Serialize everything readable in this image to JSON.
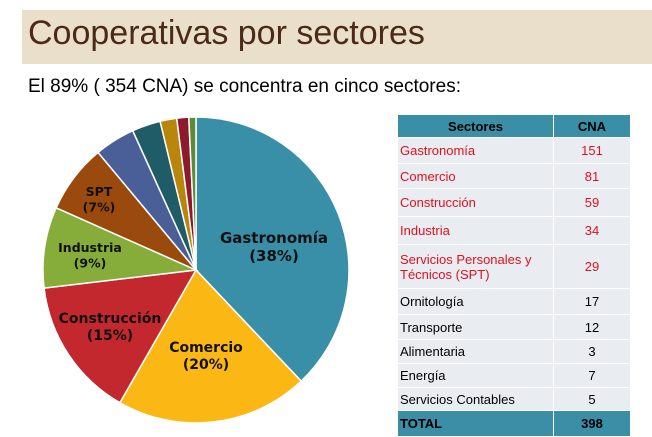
{
  "title": "Cooperativas por sectores",
  "subtitle": "El 89% ( 354  CNA) se concentra en cinco sectores:",
  "chart_data": {
    "type": "pie",
    "categories": [
      "Gastronomía",
      "Comercio",
      "Construcción",
      "Industria",
      "SPT",
      "Ornitología",
      "Transporte",
      "Energía",
      "Servicios Contables",
      "Alimentaria"
    ],
    "values": [
      151,
      81,
      59,
      34,
      29,
      17,
      12,
      7,
      5,
      3
    ],
    "colors": [
      "#3a8fa8",
      "#fbb714",
      "#c3282f",
      "#86ac3a",
      "#9a4a0c",
      "#4a5f98",
      "#1f5c68",
      "#b8860b",
      "#8c1a2c",
      "#5f8a3a"
    ],
    "labels": [
      {
        "name": "Gastronomía",
        "pct": "(38%)"
      },
      {
        "name": "Comercio",
        "pct": "(20%)"
      },
      {
        "name": "Construcción",
        "pct": "(15%)"
      },
      {
        "name": "Industria",
        "pct": "(9%)"
      },
      {
        "name": "SPT",
        "pct": "(7%)"
      }
    ],
    "start": "top",
    "direction": "clockwise"
  },
  "table": {
    "headers": [
      "Sectores",
      "CNA"
    ],
    "rows": [
      {
        "sector": "Gastronomía",
        "cna": "151",
        "highlight": true
      },
      {
        "sector": "Comercio",
        "cna": "81",
        "highlight": true
      },
      {
        "sector": "Construcción",
        "cna": "59",
        "highlight": true
      },
      {
        "sector": "Industria",
        "cna": "34",
        "highlight": true
      },
      {
        "sector": "Servicios Personales y Técnicos (SPT)",
        "cna": "29",
        "highlight": true
      },
      {
        "sector": "Ornitología",
        "cna": "17",
        "highlight": false
      },
      {
        "sector": "Transporte",
        "cna": "12",
        "highlight": false
      },
      {
        "sector": "Alimentaria",
        "cna": "3",
        "highlight": false
      },
      {
        "sector": "Energía",
        "cna": "7",
        "highlight": false
      },
      {
        "sector": "Servicios Contables",
        "cna": "5",
        "highlight": false
      }
    ],
    "total_label": "TOTAL",
    "total_value": "398"
  }
}
